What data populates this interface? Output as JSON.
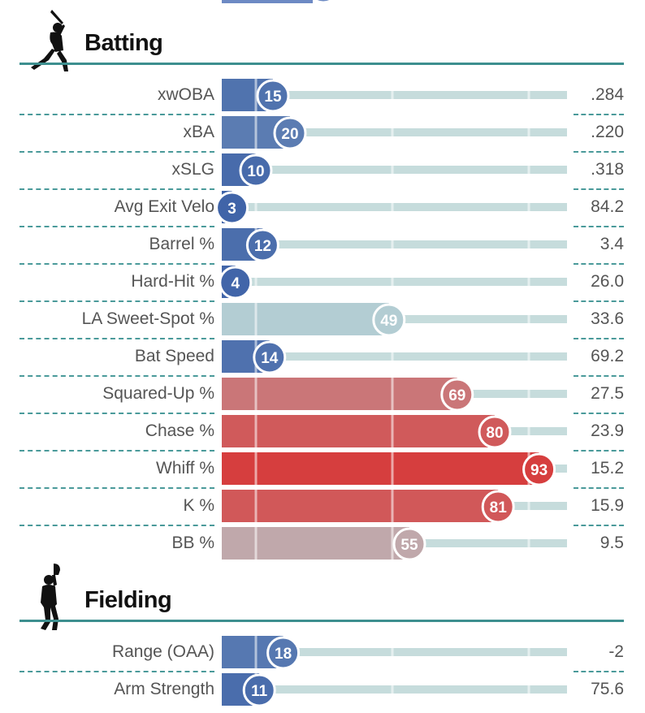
{
  "sections": [
    {
      "title": "Batting",
      "icon": "batter-silhouette-icon",
      "rows": [
        {
          "label": "xwOBA",
          "percentile": 15,
          "value": ".284"
        },
        {
          "label": "xBA",
          "percentile": 20,
          "value": ".220"
        },
        {
          "label": "xSLG",
          "percentile": 10,
          "value": ".318"
        },
        {
          "label": "Avg Exit Velo",
          "percentile": 3,
          "value": "84.2"
        },
        {
          "label": "Barrel %",
          "percentile": 12,
          "value": "3.4"
        },
        {
          "label": "Hard-Hit %",
          "percentile": 4,
          "value": "26.0"
        },
        {
          "label": "LA Sweet-Spot %",
          "percentile": 49,
          "value": "33.6"
        },
        {
          "label": "Bat Speed",
          "percentile": 14,
          "value": "69.2"
        },
        {
          "label": "Squared-Up %",
          "percentile": 69,
          "value": "27.5"
        },
        {
          "label": "Chase %",
          "percentile": 80,
          "value": "23.9"
        },
        {
          "label": "Whiff %",
          "percentile": 93,
          "value": "15.2"
        },
        {
          "label": "K %",
          "percentile": 81,
          "value": "15.9"
        },
        {
          "label": "BB %",
          "percentile": 55,
          "value": "9.5"
        }
      ]
    },
    {
      "title": "Fielding",
      "icon": "fielder-silhouette-icon",
      "rows": [
        {
          "label": "Range (OAA)",
          "percentile": 18,
          "value": "-2"
        },
        {
          "label": "Arm Strength",
          "percentile": 11,
          "value": "75.6"
        }
      ]
    }
  ],
  "chart_data": {
    "type": "bar",
    "xlim": [
      0,
      100
    ],
    "color_scale": {
      "low": "#3f63a8",
      "mid": "#b7d0d4",
      "high": "#d93030"
    },
    "categories": [
      "xwOBA",
      "xBA",
      "xSLG",
      "Avg Exit Velo",
      "Barrel %",
      "Hard-Hit %",
      "LA Sweet-Spot %",
      "Bat Speed",
      "Squared-Up %",
      "Chase %",
      "Whiff %",
      "K %",
      "BB %",
      "Range (OAA)",
      "Arm Strength"
    ],
    "values": [
      15,
      20,
      10,
      3,
      12,
      4,
      49,
      14,
      69,
      80,
      93,
      81,
      55,
      18,
      11
    ]
  }
}
